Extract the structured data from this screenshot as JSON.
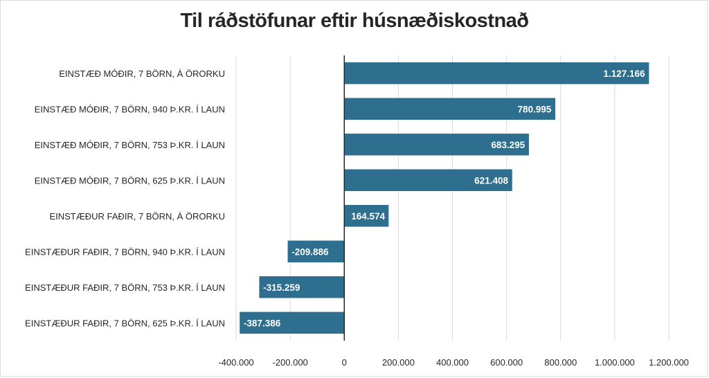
{
  "chart_data": {
    "type": "bar",
    "orientation": "horizontal",
    "title": "Til ráðstöfunar eftir húsnæðiskostnað",
    "categories": [
      "EINSTÆÐ MÓÐIR, 7 BÖRN, Á ÖRORKU",
      "EINSTÆÐ MÓÐIR, 7 BÖRN, 940 Þ.KR. Í LAUN",
      "EINSTÆÐ MÓÐIR, 7 BÖRN, 753 Þ.KR. Í LAUN",
      "EINSTÆÐ MÓÐIR, 7 BÖRN, 625 Þ.KR. Í LAUN",
      "EINSTÆÐUR FAÐIR, 7 BÖRN, Á ÖRORKU",
      "EINSTÆÐUR FAÐIR, 7 BÖRN, 940 Þ.KR. Í LAUN",
      "EINSTÆÐUR FAÐIR, 7 BÖRN, 753 Þ.KR. Í LAUN",
      "EINSTÆÐUR FAÐIR, 7 BÖRN, 625 Þ.KR. Í LAUN"
    ],
    "values": [
      1127166,
      780995,
      683295,
      621408,
      164574,
      -209886,
      -315259,
      -387386
    ],
    "data_labels": [
      "1.127.166",
      "780.995",
      "683.295",
      "621.408",
      "164.574",
      "-209.886",
      "-315.259",
      "-387.386"
    ],
    "xlim": [
      -400000,
      1200000
    ],
    "x_ticks": [
      -400000,
      -200000,
      0,
      200000,
      400000,
      600000,
      800000,
      1000000,
      1200000
    ],
    "x_tick_labels": [
      "-400.000",
      "-200.000",
      "0",
      "200.000",
      "400.000",
      "600.000",
      "800.000",
      "1.000.000",
      "1.200.000"
    ],
    "grid": true,
    "legend": "none",
    "bar_color": "#2e6e8e",
    "xlabel": "",
    "ylabel": ""
  }
}
